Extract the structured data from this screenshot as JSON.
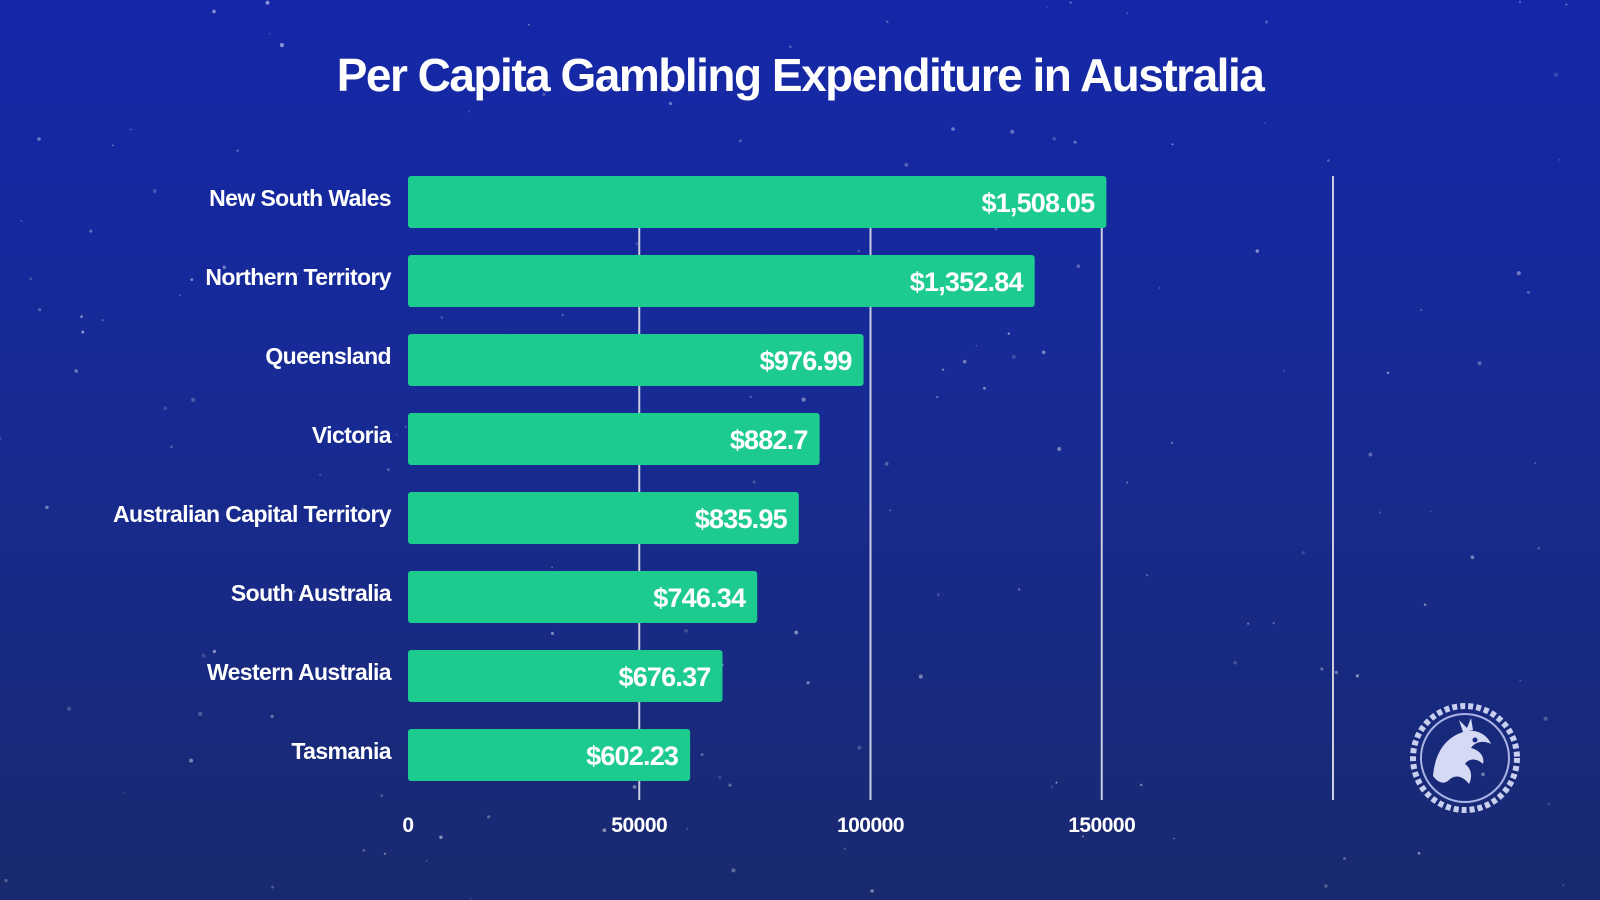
{
  "chart_data": {
    "type": "bar",
    "orientation": "horizontal",
    "title": "Per Capita Gambling Expenditure in Australia",
    "categories": [
      "New South Wales",
      "Northern Territory",
      "Queensland",
      "Victoria",
      "Australian Capital Territory",
      "South Australia",
      "Western Australia",
      "Tasmania"
    ],
    "values": [
      151000,
      135500,
      98500,
      89000,
      84500,
      75500,
      68000,
      61000
    ],
    "value_labels": [
      "$1,508.05",
      "$1,352.84",
      "$976.99",
      "$882.7",
      "$835.95",
      "$746.34",
      "$676.37",
      "$602.23"
    ],
    "xlim": [
      0,
      200000
    ],
    "x_ticks": [
      0,
      50000,
      100000,
      150000
    ],
    "x_tick_labels": [
      "0",
      "50000",
      "100000",
      "150000"
    ],
    "grid": true,
    "legend": "none",
    "bar_color": "#1ecb8f",
    "grid_color": "#c9cde0"
  },
  "logo": {
    "icon": "dragon-logo-icon"
  }
}
